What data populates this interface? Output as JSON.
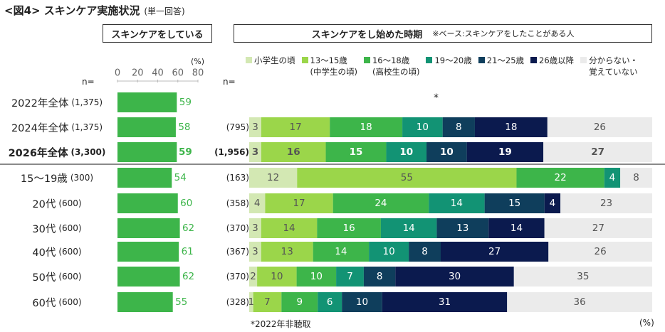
{
  "title": {
    "main": "<図4> スキンケア実施状況",
    "sub": "(単一回答)"
  },
  "headers": {
    "left": "スキンケアをしている",
    "right": "スキンケアをし始めた時期",
    "right_note": "※ベース:スキンケアをしたことがある人"
  },
  "labels": {
    "n_left": "n=",
    "n_right": "n=",
    "pct_unit_top": "(%)",
    "pct_unit_bottom": "(%)",
    "asterisk": "*"
  },
  "footnote": "*2022年非聴取",
  "legend": [
    {
      "label": "小学生の頃",
      "color": "#d3e8b3"
    },
    {
      "label": "13〜15歳\n(中学生の頃)",
      "color": "#9bd64a"
    },
    {
      "label": "16〜18歳\n(高校生の頃)",
      "color": "#3db54a"
    },
    {
      "label": "19〜20歳",
      "color": "#129374"
    },
    {
      "label": "21〜25歳",
      "color": "#0f3e5c"
    },
    {
      "label": "26歳以降",
      "color": "#0b1a4e"
    },
    {
      "label": "分からない・\n覚えていない",
      "color": "#ebebeb"
    }
  ],
  "chart_data": [
    {
      "type": "bar",
      "orientation": "horizontal",
      "title": "スキンケアをしている",
      "unit": "%",
      "xlim": [
        0,
        80
      ],
      "ticks": [
        0,
        20,
        40,
        60,
        80
      ],
      "categories": [
        "2022年全体",
        "2024年全体",
        "2026年全体",
        "15〜19歳",
        "20代",
        "30代",
        "40代",
        "50代",
        "60代"
      ],
      "n": [
        "(1,375)",
        "(1,375)",
        "(3,300)",
        "(300)",
        "(600)",
        "(600)",
        "(600)",
        "(600)",
        "(600)"
      ],
      "values": [
        59,
        58,
        59,
        54,
        60,
        62,
        61,
        62,
        55
      ],
      "color": "#3db54a"
    },
    {
      "type": "bar",
      "orientation": "horizontal",
      "stacked": true,
      "title": "スキンケアをし始めた時期",
      "unit": "%",
      "categories": [
        "2022年全体",
        "2024年全体",
        "2026年全体",
        "15〜19歳",
        "20代",
        "30代",
        "40代",
        "50代",
        "60代"
      ],
      "n": [
        null,
        "(795)",
        "(1,956)",
        "(163)",
        "(358)",
        "(370)",
        "(367)",
        "(370)",
        "(328)"
      ],
      "series": [
        {
          "name": "小学生の頃",
          "values": [
            null,
            3,
            3,
            12,
            4,
            3,
            3,
            2,
            1
          ]
        },
        {
          "name": "13〜15歳(中学生の頃)",
          "values": [
            null,
            17,
            16,
            55,
            17,
            14,
            13,
            10,
            7
          ]
        },
        {
          "name": "16〜18歳(高校生の頃)",
          "values": [
            null,
            18,
            15,
            22,
            24,
            16,
            14,
            10,
            9
          ]
        },
        {
          "name": "19〜20歳",
          "values": [
            null,
            10,
            10,
            4,
            14,
            14,
            10,
            7,
            6
          ]
        },
        {
          "name": "21〜25歳",
          "values": [
            null,
            8,
            10,
            null,
            15,
            13,
            8,
            8,
            10
          ]
        },
        {
          "name": "26歳以降",
          "values": [
            null,
            18,
            19,
            null,
            4,
            14,
            27,
            30,
            31
          ]
        },
        {
          "name": "分からない・覚えていない",
          "values": [
            null,
            26,
            27,
            8,
            23,
            27,
            26,
            35,
            36
          ]
        }
      ]
    }
  ]
}
